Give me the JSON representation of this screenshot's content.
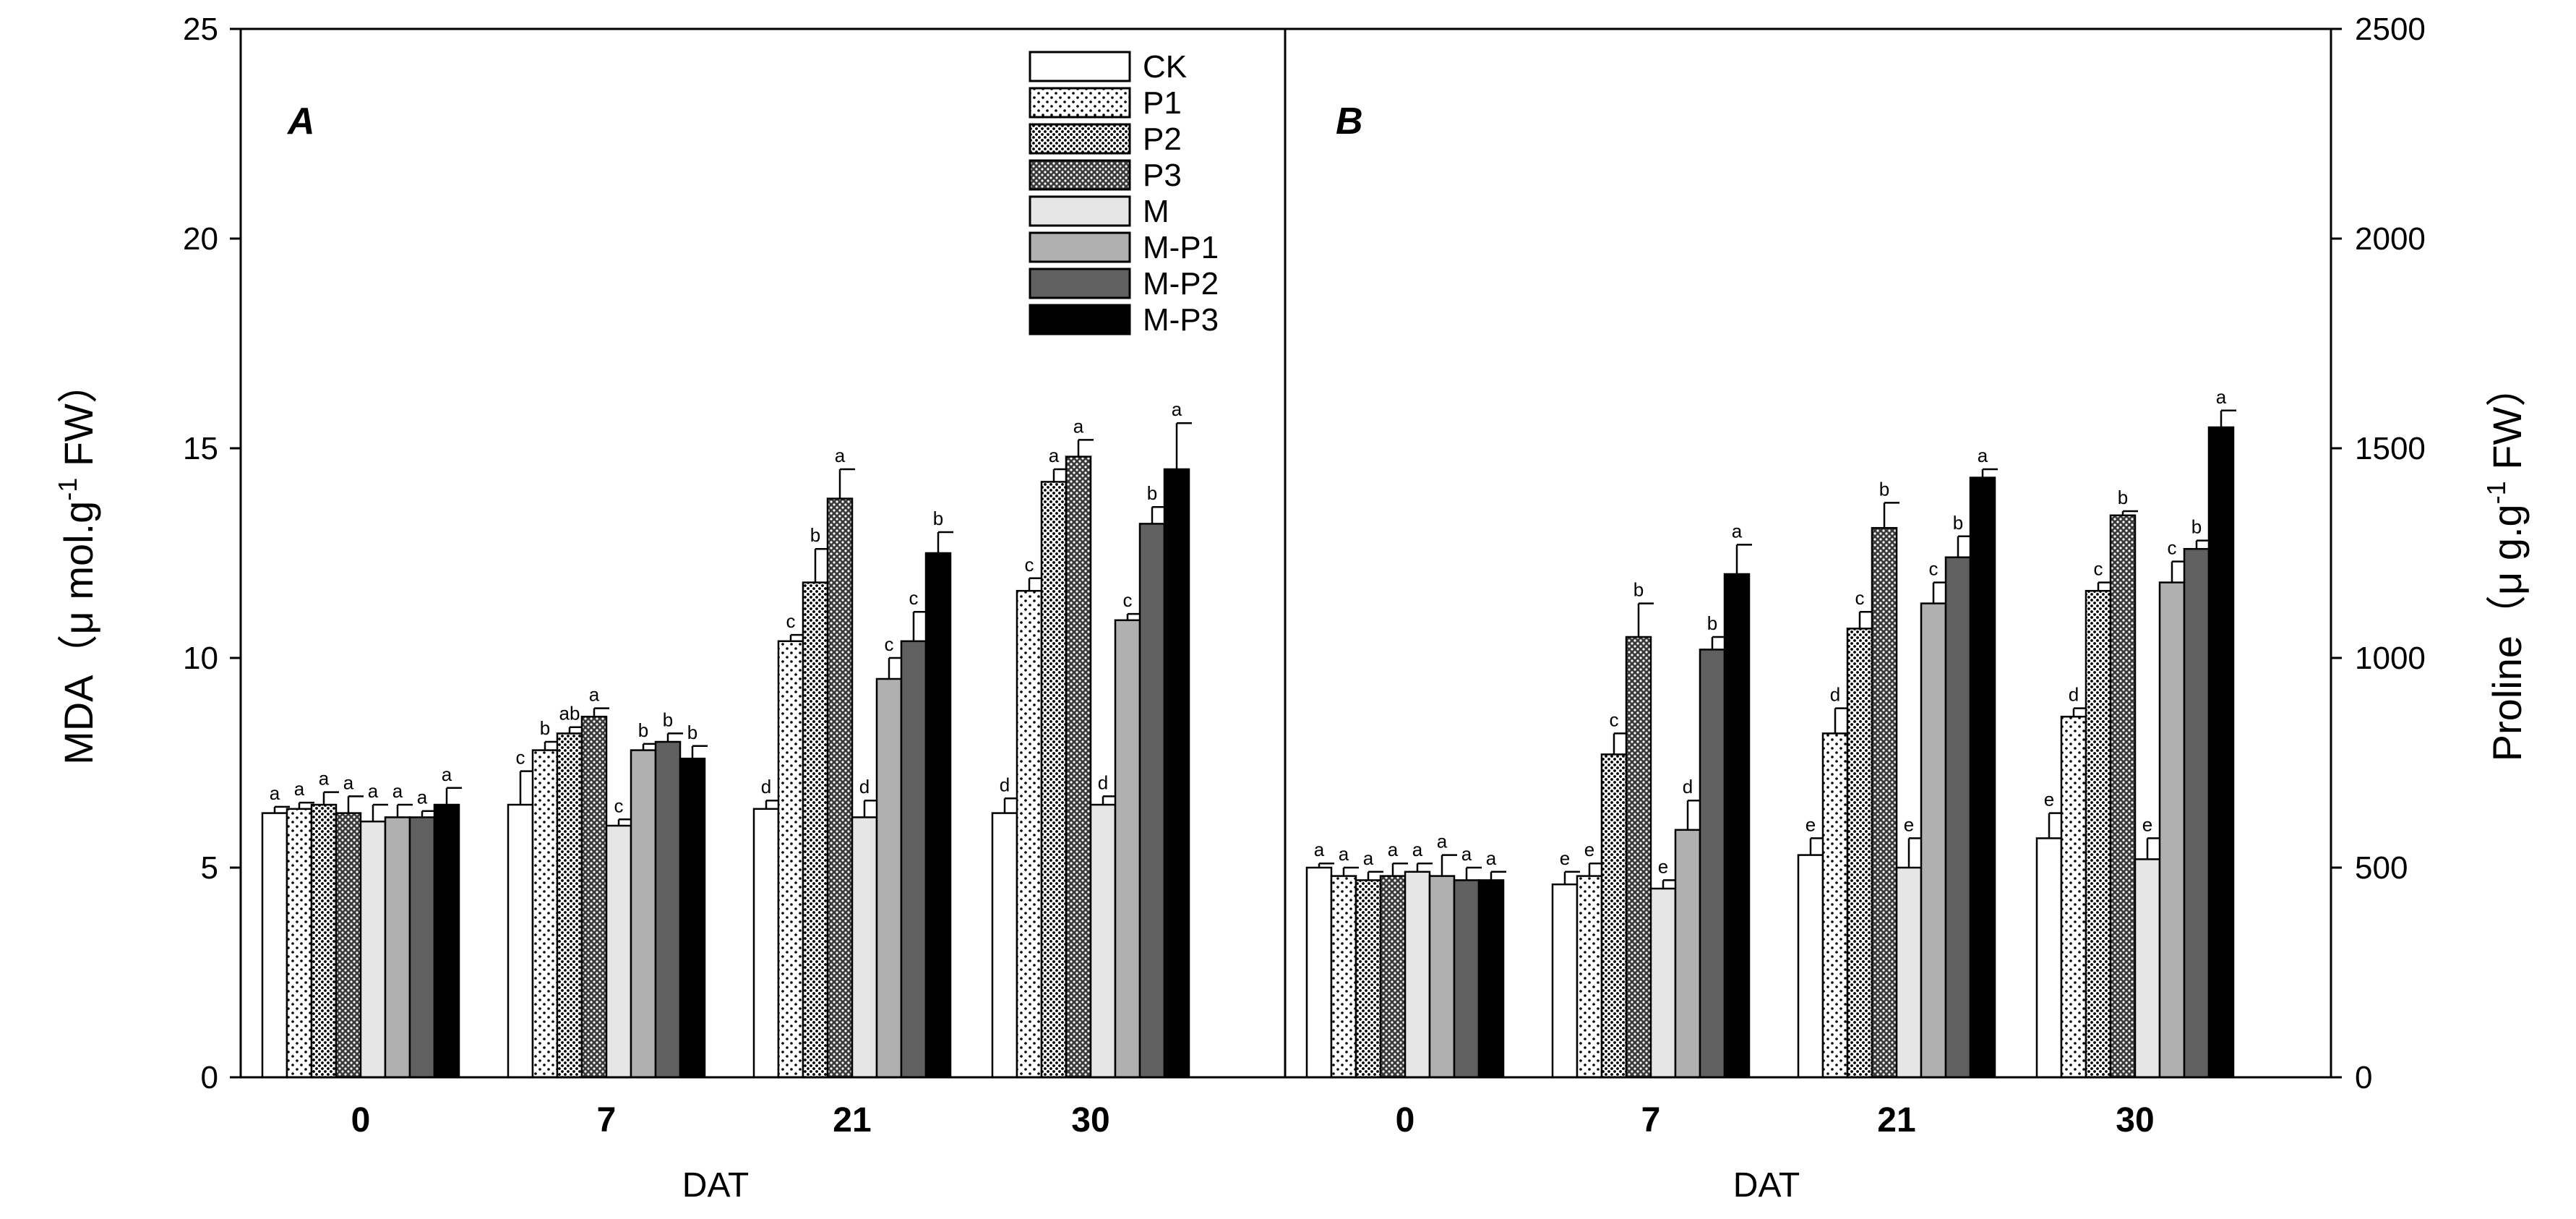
{
  "chart_data": {
    "type": "bar",
    "legend": {
      "placement": "top-center",
      "entries": [
        "CK",
        "P1",
        "P2",
        "P3",
        "M",
        "M-P1",
        "M-P2",
        "M-P3"
      ]
    },
    "xlabel": "DAT",
    "categories": [
      "0",
      "7",
      "21",
      "30"
    ],
    "panels": [
      {
        "label": "A",
        "ylabel": "MDA（μ mol.g",
        "ylabel_sup": "-1",
        "ylabel_tail": " FW）",
        "ylim": [
          0,
          25
        ],
        "yticks": [
          "0",
          "5",
          "10",
          "15",
          "20",
          "25"
        ],
        "series": [
          {
            "name": "CK",
            "values": [
              6.3,
              6.5,
              6.4,
              6.3
            ],
            "errors": [
              0.15,
              0.8,
              0.2,
              0.35
            ],
            "letters": [
              "a",
              "c",
              "d",
              "d"
            ]
          },
          {
            "name": "P1",
            "values": [
              6.4,
              7.8,
              10.4,
              11.6
            ],
            "errors": [
              0.15,
              0.2,
              0.15,
              0.3
            ],
            "letters": [
              "a",
              "b",
              "c",
              "c"
            ]
          },
          {
            "name": "P2",
            "values": [
              6.5,
              8.2,
              11.8,
              14.2
            ],
            "errors": [
              0.3,
              0.15,
              0.8,
              0.3
            ],
            "letters": [
              "a",
              "ab",
              "b",
              "a"
            ]
          },
          {
            "name": "P3",
            "values": [
              6.3,
              8.6,
              13.8,
              14.8
            ],
            "errors": [
              0.4,
              0.2,
              0.7,
              0.4
            ],
            "letters": [
              "a",
              "a",
              "a",
              "a"
            ]
          },
          {
            "name": "M",
            "values": [
              6.1,
              6.0,
              6.2,
              6.5
            ],
            "errors": [
              0.4,
              0.15,
              0.4,
              0.2
            ],
            "letters": [
              "a",
              "c",
              "d",
              "d"
            ]
          },
          {
            "name": "M-P1",
            "values": [
              6.2,
              7.8,
              9.5,
              10.9
            ],
            "errors": [
              0.3,
              0.15,
              0.5,
              0.15
            ],
            "letters": [
              "a",
              "b",
              "c",
              "c"
            ]
          },
          {
            "name": "M-P2",
            "values": [
              6.2,
              8.0,
              10.4,
              13.2
            ],
            "errors": [
              0.15,
              0.2,
              0.7,
              0.4
            ],
            "letters": [
              "a",
              "b",
              "c",
              "b"
            ]
          },
          {
            "name": "M-P3",
            "values": [
              6.5,
              7.6,
              12.5,
              14.5
            ],
            "errors": [
              0.4,
              0.3,
              0.5,
              1.1
            ],
            "letters": [
              "a",
              "b",
              "b",
              "a"
            ]
          }
        ]
      },
      {
        "label": "B",
        "ylabel": "Proline（μ g.g",
        "ylabel_sup": "-1",
        "ylabel_tail": " FW）",
        "ylim": [
          0,
          2500
        ],
        "yticks": [
          "0",
          "500",
          "1000",
          "1500",
          "2000",
          "2500"
        ],
        "series": [
          {
            "name": "CK",
            "values": [
              500,
              460,
              530,
              570
            ],
            "errors": [
              10,
              30,
              40,
              60
            ],
            "letters": [
              "a",
              "e",
              "e",
              "e"
            ]
          },
          {
            "name": "P1",
            "values": [
              480,
              480,
              820,
              860
            ],
            "errors": [
              20,
              30,
              60,
              20
            ],
            "letters": [
              "a",
              "e",
              "d",
              "d"
            ]
          },
          {
            "name": "P2",
            "values": [
              470,
              770,
              1070,
              1160
            ],
            "errors": [
              20,
              50,
              40,
              20
            ],
            "letters": [
              "a",
              "c",
              "c",
              "c"
            ]
          },
          {
            "name": "P3",
            "values": [
              480,
              1050,
              1310,
              1340
            ],
            "errors": [
              30,
              80,
              60,
              10
            ],
            "letters": [
              "a",
              "b",
              "b",
              "b"
            ]
          },
          {
            "name": "M",
            "values": [
              490,
              450,
              500,
              520
            ],
            "errors": [
              20,
              20,
              70,
              50
            ],
            "letters": [
              "a",
              "e",
              "e",
              "e"
            ]
          },
          {
            "name": "M-P1",
            "values": [
              480,
              590,
              1130,
              1180
            ],
            "errors": [
              50,
              70,
              50,
              50
            ],
            "letters": [
              "a",
              "d",
              "c",
              "c"
            ]
          },
          {
            "name": "M-P2",
            "values": [
              470,
              1020,
              1240,
              1260
            ],
            "errors": [
              30,
              30,
              50,
              20
            ],
            "letters": [
              "a",
              "b",
              "b",
              "b"
            ]
          },
          {
            "name": "M-P3",
            "values": [
              470,
              1200,
              1430,
              1550
            ],
            "errors": [
              20,
              70,
              20,
              40
            ],
            "letters": [
              "a",
              "a",
              "a",
              "a"
            ]
          }
        ]
      }
    ]
  }
}
